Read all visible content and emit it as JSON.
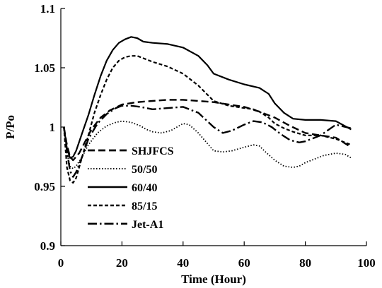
{
  "chart_data": {
    "type": "line",
    "title": "",
    "xlabel": "Time (Hour)",
    "ylabel": "P/Po",
    "xlim": [
      0,
      100
    ],
    "ylim": [
      0.9,
      1.1
    ],
    "xticks": [
      0,
      20,
      40,
      60,
      80,
      100
    ],
    "yticks": [
      0.9,
      0.95,
      1,
      1.05,
      1.1
    ],
    "xtick_labels": [
      "0",
      "20",
      "40",
      "60",
      "80",
      "100"
    ],
    "ytick_labels": [
      "0.9",
      "0.95",
      "1",
      "1.05",
      "1.1"
    ],
    "grid": false,
    "legend_position": "left",
    "series": [
      {
        "name": "SHJFCS",
        "style": "long-dash",
        "x": [
          1,
          2,
          3,
          4,
          6,
          8,
          10,
          13,
          16,
          20,
          25,
          30,
          35,
          40,
          45,
          50,
          55,
          60,
          65,
          70,
          75,
          80,
          85,
          90,
          95
        ],
        "y": [
          1.0,
          0.985,
          0.975,
          0.972,
          0.978,
          0.988,
          0.998,
          1.008,
          1.014,
          1.019,
          1.021,
          1.022,
          1.023,
          1.023,
          1.022,
          1.021,
          1.019,
          1.017,
          1.013,
          1.008,
          1.001,
          0.995,
          0.993,
          0.991,
          0.983
        ]
      },
      {
        "name": "50/50",
        "style": "dotted",
        "x": [
          1,
          2,
          3,
          4,
          5,
          7,
          9,
          12,
          15,
          18,
          20,
          23,
          26,
          28,
          30,
          33,
          36,
          38,
          40,
          42,
          45,
          48,
          50,
          53,
          56,
          60,
          63,
          65,
          67,
          70,
          73,
          76,
          78,
          80,
          83,
          86,
          90,
          93,
          95
        ],
        "y": [
          1.0,
          0.978,
          0.967,
          0.965,
          0.967,
          0.975,
          0.985,
          0.995,
          1.001,
          1.004,
          1.005,
          1.004,
          1.001,
          0.998,
          0.996,
          0.995,
          0.997,
          1.0,
          1.003,
          1.002,
          0.995,
          0.986,
          0.98,
          0.979,
          0.98,
          0.983,
          0.985,
          0.984,
          0.979,
          0.972,
          0.967,
          0.966,
          0.967,
          0.97,
          0.973,
          0.976,
          0.978,
          0.977,
          0.974
        ]
      },
      {
        "name": "60/40",
        "style": "solid",
        "x": [
          1,
          2,
          3,
          4,
          5,
          7,
          9,
          11,
          13,
          15,
          17,
          19,
          21,
          23,
          25,
          27,
          30,
          35,
          40,
          45,
          48,
          50,
          55,
          60,
          65,
          68,
          70,
          73,
          76,
          80,
          85,
          90,
          95
        ],
        "y": [
          1.0,
          0.982,
          0.974,
          0.975,
          0.98,
          0.995,
          1.01,
          1.027,
          1.043,
          1.056,
          1.065,
          1.071,
          1.074,
          1.076,
          1.075,
          1.072,
          1.071,
          1.07,
          1.067,
          1.06,
          1.052,
          1.045,
          1.04,
          1.036,
          1.033,
          1.028,
          1.02,
          1.012,
          1.007,
          1.006,
          1.006,
          1.005,
          0.998
        ]
      },
      {
        "name": "85/15",
        "style": "short-dash",
        "x": [
          1,
          2,
          3,
          4,
          5,
          7,
          9,
          11,
          13,
          15,
          17,
          19,
          21,
          23,
          25,
          28,
          30,
          35,
          40,
          45,
          50,
          55,
          60,
          63,
          65,
          68,
          70,
          73,
          76,
          80,
          85,
          90,
          95
        ],
        "y": [
          1.0,
          0.966,
          0.955,
          0.953,
          0.957,
          0.975,
          0.993,
          1.012,
          1.027,
          1.04,
          1.05,
          1.056,
          1.059,
          1.06,
          1.06,
          1.057,
          1.055,
          1.051,
          1.045,
          1.035,
          1.022,
          1.018,
          1.016,
          1.015,
          1.013,
          1.008,
          1.003,
          0.999,
          0.996,
          0.993,
          0.993,
          0.99,
          0.985
        ]
      },
      {
        "name": "Jet-A1",
        "style": "dash-dot",
        "x": [
          1,
          2,
          3,
          4,
          5,
          7,
          9,
          12,
          15,
          18,
          20,
          23,
          26,
          30,
          35,
          40,
          45,
          50,
          53,
          56,
          60,
          63,
          66,
          69,
          72,
          75,
          78,
          80,
          85,
          90,
          95
        ],
        "y": [
          1.0,
          0.98,
          0.963,
          0.958,
          0.962,
          0.975,
          0.99,
          1.003,
          1.011,
          1.016,
          1.018,
          1.018,
          1.017,
          1.015,
          1.016,
          1.017,
          1.012,
          1.0,
          0.995,
          0.997,
          1.002,
          1.005,
          1.004,
          1.0,
          0.994,
          0.989,
          0.987,
          0.988,
          0.993,
          1.002,
          0.999
        ]
      }
    ]
  }
}
